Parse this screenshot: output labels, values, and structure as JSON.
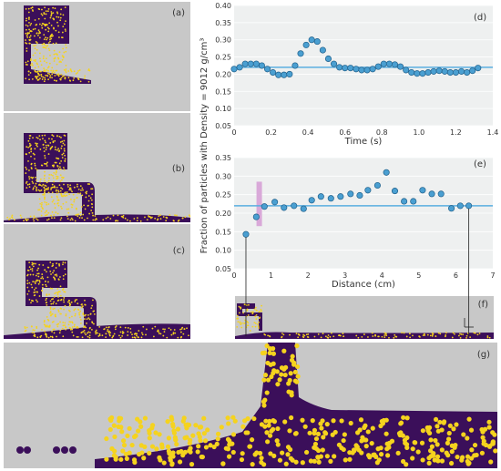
{
  "panels": {
    "a": "(a)",
    "b": "(b)",
    "c": "(c)",
    "d": "(d)",
    "e": "(e)",
    "f": "(f)",
    "g": "(g)"
  },
  "shared_ylabel": "Fraction of particles with Density = 9012 g/cm³",
  "colors": {
    "background_panel": "#c8c8c8",
    "particle_dark": "#3b0f5a",
    "particle_light": "#f5d31e",
    "marker_fill": "#4a9fd1",
    "marker_edge": "#1f5f8a",
    "reference_line": "#5aaee0",
    "highlight_bar": "#d9a9d9",
    "plot_bg": "#eef0f0"
  },
  "chart_data": [
    {
      "id": "d",
      "type": "scatter",
      "xlabel": "Time (s)",
      "ylabel": "",
      "xlim": [
        0,
        14
      ],
      "ylim": [
        0.05,
        0.4
      ],
      "xticks": [
        "0",
        "0.2",
        "0.4",
        "0.6",
        "0.8",
        "1.0",
        "1.2",
        "1.4"
      ],
      "xtick_values": [
        0,
        2,
        4,
        6,
        8,
        10,
        12,
        14
      ],
      "yticks": [
        "0.05",
        "0.10",
        "0.15",
        "0.20",
        "0.25",
        "0.30",
        "0.35",
        "0.40"
      ],
      "ytick_values": [
        0.05,
        0.1,
        0.15,
        0.2,
        0.25,
        0.3,
        0.35,
        0.4
      ],
      "reference_line": 0.22,
      "x": [
        0.0,
        0.3,
        0.6,
        0.9,
        1.2,
        1.5,
        1.8,
        2.1,
        2.4,
        2.7,
        3.0,
        3.3,
        3.6,
        3.9,
        4.2,
        4.5,
        4.8,
        5.1,
        5.4,
        5.7,
        6.0,
        6.3,
        6.6,
        6.9,
        7.2,
        7.5,
        7.8,
        8.1,
        8.4,
        8.7,
        9.0,
        9.3,
        9.6,
        9.9,
        10.2,
        10.5,
        10.8,
        11.1,
        11.4,
        11.7,
        12.0,
        12.3,
        12.6,
        12.9,
        13.2
      ],
      "y": [
        0.215,
        0.22,
        0.23,
        0.23,
        0.23,
        0.225,
        0.215,
        0.205,
        0.198,
        0.198,
        0.2,
        0.225,
        0.26,
        0.285,
        0.3,
        0.295,
        0.27,
        0.245,
        0.23,
        0.22,
        0.218,
        0.218,
        0.215,
        0.212,
        0.212,
        0.215,
        0.222,
        0.23,
        0.23,
        0.228,
        0.222,
        0.212,
        0.205,
        0.202,
        0.202,
        0.205,
        0.208,
        0.21,
        0.208,
        0.205,
        0.205,
        0.208,
        0.205,
        0.21,
        0.218
      ]
    },
    {
      "id": "e",
      "type": "scatter",
      "xlabel": "Distance (cm)",
      "ylabel": "",
      "xlim": [
        0,
        7
      ],
      "ylim": [
        0.05,
        0.35
      ],
      "xticks": [
        "0",
        "1",
        "2",
        "3",
        "4",
        "5",
        "6",
        "7"
      ],
      "xtick_values": [
        0,
        1,
        2,
        3,
        4,
        5,
        6,
        7
      ],
      "yticks": [
        "0.05",
        "0.10",
        "0.15",
        "0.20",
        "0.25",
        "0.30",
        "0.35"
      ],
      "ytick_values": [
        0.05,
        0.1,
        0.15,
        0.2,
        0.25,
        0.3,
        0.35
      ],
      "reference_line": 0.22,
      "highlight": {
        "x": 0.68,
        "y_range": [
          0.165,
          0.285
        ]
      },
      "x": [
        0.32,
        0.6,
        0.82,
        1.1,
        1.35,
        1.62,
        1.88,
        2.1,
        2.35,
        2.62,
        2.88,
        3.15,
        3.4,
        3.62,
        3.88,
        4.12,
        4.35,
        4.6,
        4.85,
        5.1,
        5.35,
        5.6,
        5.88,
        6.12,
        6.35
      ],
      "y": [
        0.143,
        0.19,
        0.218,
        0.23,
        0.215,
        0.22,
        0.212,
        0.235,
        0.245,
        0.24,
        0.245,
        0.252,
        0.248,
        0.262,
        0.275,
        0.31,
        0.26,
        0.232,
        0.232,
        0.262,
        0.252,
        0.252,
        0.213,
        0.22,
        0.22
      ]
    }
  ]
}
